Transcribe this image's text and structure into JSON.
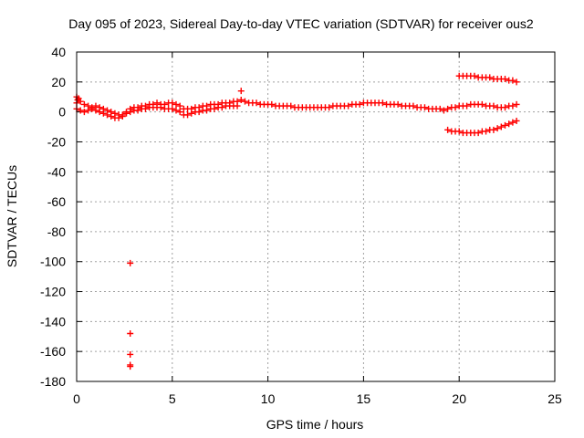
{
  "chart_data": {
    "type": "scatter",
    "title": "Day 095 of 2023, Sidereal Day-to-day VTEC variation (SDTVAR) for receiver ous2",
    "xlabel": "GPS time / hours",
    "ylabel": "SDTVAR / TECUs",
    "xlim": [
      0,
      25
    ],
    "ylim": [
      -180,
      40
    ],
    "xticks": [
      0,
      5,
      10,
      15,
      20,
      25
    ],
    "yticks": [
      40,
      20,
      0,
      -20,
      -40,
      -60,
      -80,
      -100,
      -120,
      -140,
      -160,
      -180
    ],
    "xtick_labels": [
      "0",
      "5",
      "10",
      "15",
      "20",
      "25"
    ],
    "ytick_labels": [
      "40",
      "20",
      "0",
      "-20",
      "-40",
      "-60",
      "-80",
      "-100",
      "-120",
      "-140",
      "-160",
      "-180"
    ],
    "grid": true,
    "marker": "plus",
    "color": "#ff0000",
    "series": [
      {
        "name": "main-band",
        "x": [
          0.0,
          0.2,
          0.4,
          0.6,
          0.8,
          1.0,
          1.2,
          1.4,
          1.6,
          1.8,
          2.0,
          2.2,
          2.4,
          2.6,
          2.8,
          3.0,
          3.2,
          3.4,
          3.6,
          3.8,
          4.0,
          4.2,
          4.4,
          4.6,
          4.8,
          5.0,
          5.2,
          5.4,
          5.6,
          5.8,
          6.0,
          6.2,
          6.4,
          6.6,
          6.8,
          7.0,
          7.2,
          7.4,
          7.6,
          7.8,
          8.0,
          8.2,
          8.4,
          8.6,
          8.8,
          9.0,
          9.2,
          9.4,
          9.6,
          9.8,
          10.0,
          10.2,
          10.4,
          10.6,
          10.8,
          11.0,
          11.2,
          11.4,
          11.6,
          11.8,
          12.0,
          12.2,
          12.4,
          12.6,
          12.8,
          13.0,
          13.2,
          13.4,
          13.6,
          13.8,
          14.0,
          14.2,
          14.4,
          14.6,
          14.8,
          15.0,
          15.2,
          15.4,
          15.6,
          15.8,
          16.0,
          16.2,
          16.4,
          16.6,
          16.8,
          17.0,
          17.2,
          17.4,
          17.6,
          17.8,
          18.0,
          18.2,
          18.4,
          18.6,
          18.8,
          19.0,
          19.2,
          19.4,
          19.6,
          19.8,
          20.0,
          20.2,
          20.4,
          20.6,
          20.8,
          21.0,
          21.2,
          21.4,
          21.6,
          21.8,
          22.0,
          22.2,
          22.4,
          22.6,
          22.8,
          23.0
        ],
        "y": [
          6,
          7,
          5,
          4,
          3,
          4,
          3,
          2,
          1,
          0,
          -1,
          -2,
          -2,
          0,
          2,
          3,
          3,
          4,
          4,
          5,
          5,
          6,
          5,
          5,
          6,
          6,
          5,
          4,
          2,
          2,
          2,
          3,
          3,
          4,
          4,
          5,
          5,
          5,
          6,
          6,
          6,
          7,
          7,
          8,
          7,
          6,
          6,
          6,
          5,
          5,
          5,
          5,
          4,
          4,
          4,
          4,
          4,
          3,
          3,
          3,
          3,
          3,
          3,
          3,
          3,
          3,
          3,
          4,
          4,
          4,
          4,
          4,
          5,
          5,
          5,
          6,
          6,
          6,
          6,
          6,
          6,
          5,
          5,
          5,
          5,
          4,
          4,
          4,
          4,
          3,
          3,
          3,
          2,
          2,
          2,
          2,
          1,
          2,
          3,
          3,
          4,
          4,
          4,
          5,
          5,
          5,
          5,
          4,
          4,
          4,
          3,
          3,
          3,
          4,
          4,
          5
        ]
      },
      {
        "name": "lower-band",
        "x": [
          0.0,
          0.2,
          0.4,
          0.6,
          0.8,
          1.0,
          1.2,
          1.4,
          1.6,
          1.8,
          2.0,
          2.2,
          2.4,
          2.6,
          2.8,
          3.0,
          3.2,
          3.4,
          3.6,
          3.8,
          4.0,
          4.2,
          4.4,
          4.6,
          4.8,
          5.0,
          5.2,
          5.4,
          5.6,
          5.8,
          6.0,
          6.2,
          6.4,
          6.6,
          6.8,
          7.0,
          7.2,
          7.4,
          7.6,
          7.8,
          8.0,
          8.2,
          8.4
        ],
        "y": [
          2,
          1,
          0,
          1,
          2,
          1,
          0,
          -1,
          -2,
          -3,
          -4,
          -4,
          -3,
          -1,
          0,
          1,
          1,
          2,
          2,
          3,
          3,
          3,
          3,
          2,
          2,
          2,
          1,
          0,
          -2,
          -2,
          -1,
          0,
          0,
          1,
          1,
          2,
          2,
          3,
          3,
          4,
          4,
          4,
          4
        ]
      },
      {
        "name": "upper-arc-late",
        "x": [
          20.0,
          20.2,
          20.4,
          20.6,
          20.8,
          21.0,
          21.2,
          21.4,
          21.6,
          21.8,
          22.0,
          22.2,
          22.4,
          22.6,
          22.8,
          23.0
        ],
        "y": [
          24,
          24,
          24,
          24,
          24,
          23,
          23,
          23,
          23,
          22,
          22,
          22,
          22,
          21,
          21,
          20
        ]
      },
      {
        "name": "lower-arc-late",
        "x": [
          19.4,
          19.6,
          19.8,
          20.0,
          20.2,
          20.4,
          20.6,
          20.8,
          21.0,
          21.2,
          21.4,
          21.6,
          21.8,
          22.0,
          22.2,
          22.4,
          22.6,
          22.8,
          23.0
        ],
        "y": [
          -12,
          -13,
          -13,
          -13,
          -14,
          -14,
          -14,
          -14,
          -14,
          -13,
          -13,
          -12,
          -12,
          -11,
          -10,
          -9,
          -8,
          -7,
          -6
        ]
      },
      {
        "name": "outliers",
        "x": [
          0.0,
          0.05,
          0.1,
          2.8,
          2.8,
          2.8,
          2.8,
          2.8,
          8.6
        ],
        "y": [
          10,
          8,
          9,
          -101,
          -148,
          -162,
          -169,
          -170,
          14
        ]
      }
    ]
  }
}
